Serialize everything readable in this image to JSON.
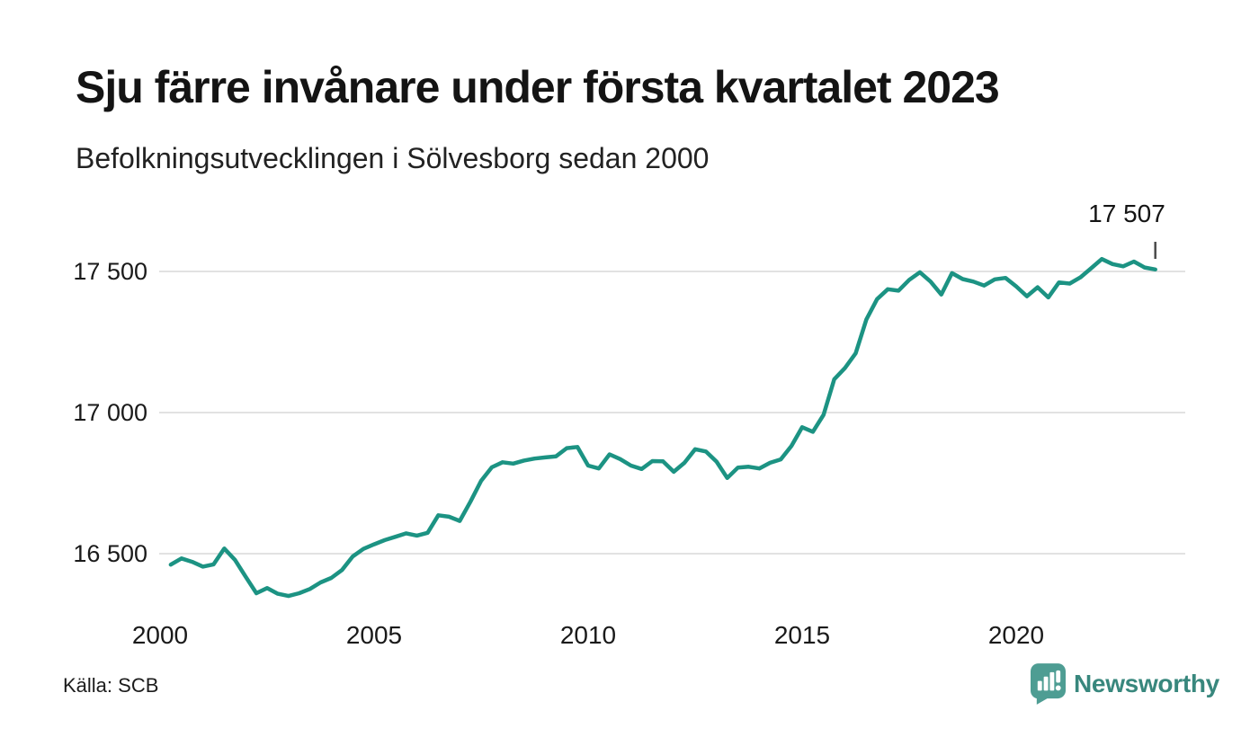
{
  "header": {
    "title": "Sju färre invånare under första kvartalet 2023",
    "subtitle": "Befolkningsutvecklingen i Sölvesborg sedan 2000"
  },
  "footer": {
    "source": "Källa: SCB",
    "brand": "Newsworthy",
    "brand_icon": "newsworthy-speech-bubble-bar-chart-icon"
  },
  "colors": {
    "line": "#1C9383",
    "grid": "#e2e2e2",
    "axis_text": "#1a1a1a",
    "annotation_tick": "#4a4a4a",
    "brand_teal": "#38877D",
    "brand_icon_teal": "#4E9D93",
    "background": "#ffffff"
  },
  "chart_data": {
    "type": "line",
    "title": "Sju färre invånare under första kvartalet 2023",
    "subtitle": "Befolkningsutvecklingen i Sölvesborg sedan 2000",
    "source": "Källa: SCB",
    "unit": "invånare",
    "frequency": "quarterly",
    "period_start": "2000 Q1",
    "period_end": "2023 Q1",
    "x_start": 2000.25,
    "x_step": 0.25,
    "x_ticks": [
      2000,
      2005,
      2010,
      2015,
      2020
    ],
    "y_ticks": [
      {
        "value": 16500,
        "label": "16 500"
      },
      {
        "value": 17000,
        "label": "17 000"
      },
      {
        "value": 17500,
        "label": "17 500"
      }
    ],
    "ylim": [
      16280,
      17640
    ],
    "grid": true,
    "legend": "none",
    "last_value": 17507,
    "last_label": "17 507",
    "values": [
      16461,
      16483,
      16471,
      16454,
      16462,
      16518,
      16478,
      16418,
      16360,
      16378,
      16358,
      16350,
      16360,
      16375,
      16398,
      16414,
      16442,
      16490,
      16517,
      16533,
      16548,
      16560,
      16572,
      16564,
      16574,
      16636,
      16631,
      16616,
      16684,
      16758,
      16806,
      16824,
      16819,
      16830,
      16837,
      16841,
      16845,
      16874,
      16878,
      16812,
      16802,
      16852,
      16835,
      16812,
      16800,
      16828,
      16827,
      16790,
      16822,
      16870,
      16862,
      16826,
      16768,
      16805,
      16808,
      16802,
      16822,
      16834,
      16882,
      16948,
      16932,
      16992,
      17118,
      17158,
      17210,
      17330,
      17402,
      17437,
      17432,
      17470,
      17497,
      17464,
      17418,
      17494,
      17473,
      17464,
      17450,
      17472,
      17477,
      17447,
      17412,
      17444,
      17408,
      17461,
      17457,
      17479,
      17511,
      17544,
      17526,
      17518,
      17535,
      17514,
      17507
    ]
  }
}
